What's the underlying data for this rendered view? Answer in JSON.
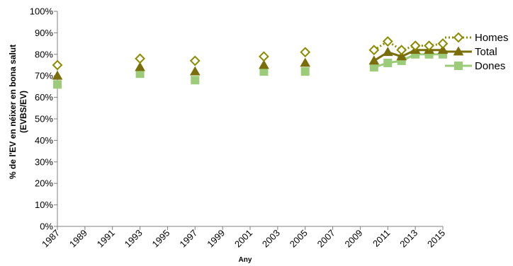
{
  "chart_data": {
    "type": "line",
    "title": "",
    "xlabel": "Any",
    "ylabel": "% de l'EV en néixer en bona salut (EVBS/EV)",
    "xlim": [
      1987,
      2015
    ],
    "ylim": [
      0,
      100
    ],
    "y_ticks": [
      "0%",
      "10%",
      "20%",
      "30%",
      "40%",
      "50%",
      "60%",
      "70%",
      "80%",
      "90%",
      "100%"
    ],
    "x_ticks": [
      "1987",
      "1989",
      "1991",
      "1993",
      "1995",
      "1997",
      "1999",
      "2001",
      "2003",
      "2005",
      "2007",
      "2009",
      "2011",
      "2013",
      "2015"
    ],
    "legend_position": "right",
    "series": [
      {
        "name": "Homes",
        "color": "#8B8B00",
        "marker": "diamond",
        "line": "dotted",
        "x": [
          1987,
          1993,
          1997,
          2002,
          2005,
          2010,
          2011,
          2012,
          2013,
          2014,
          2015
        ],
        "values": [
          75,
          78,
          77,
          79,
          81,
          82,
          86,
          82,
          84,
          84,
          85
        ]
      },
      {
        "name": "Total",
        "color": "#7A6E0A",
        "marker": "triangle",
        "line": "solid",
        "x": [
          1987,
          1993,
          1997,
          2002,
          2005,
          2010,
          2011,
          2012,
          2013,
          2014,
          2015
        ],
        "values": [
          70,
          74,
          72,
          75,
          76,
          77,
          81,
          79,
          82,
          82,
          82
        ]
      },
      {
        "name": "Dones",
        "color": "#9CCB7A",
        "marker": "square",
        "line": "solid",
        "x": [
          1987,
          1993,
          1997,
          2002,
          2005,
          2010,
          2011,
          2012,
          2013,
          2014,
          2015
        ],
        "values": [
          66,
          71,
          68,
          72,
          72,
          74,
          76,
          77,
          80,
          80,
          80
        ]
      }
    ]
  }
}
